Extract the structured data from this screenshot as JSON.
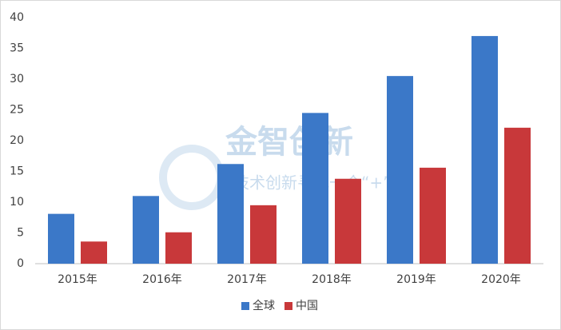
{
  "chart_data": {
    "type": "bar",
    "categories": [
      "2015年",
      "2016年",
      "2017年",
      "2018年",
      "2019年",
      "2020年"
    ],
    "series": [
      {
        "name": "全球",
        "color": "#3b78c8",
        "values": [
          8.1,
          11.0,
          16.2,
          24.5,
          30.5,
          37.0
        ]
      },
      {
        "name": "中国",
        "color": "#c8383a",
        "values": [
          3.6,
          5.1,
          9.5,
          13.8,
          15.6,
          22.1
        ]
      }
    ],
    "ylim": [
      0,
      40
    ],
    "yticks": [
      0,
      5,
      10,
      15,
      20,
      25,
      30,
      35,
      40
    ],
    "grid": false,
    "legend": "bottom",
    "watermark": {
      "title": "金智创新",
      "slogan": "为技术创新寻找一个“+”"
    }
  }
}
